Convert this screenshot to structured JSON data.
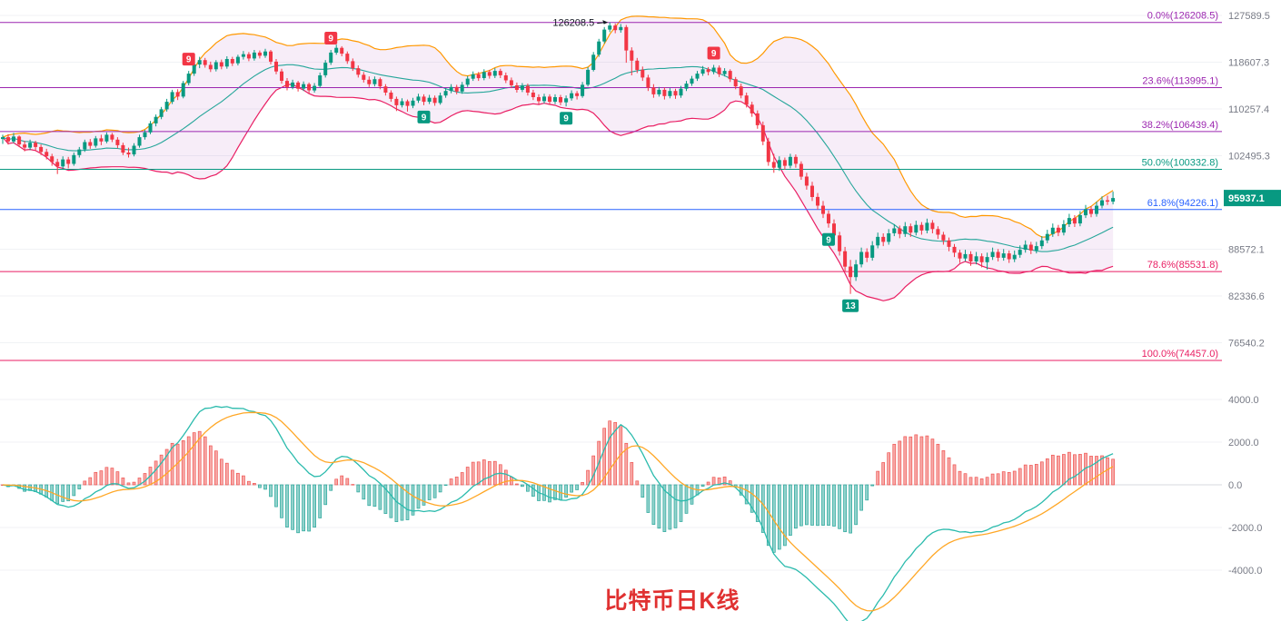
{
  "meta": {
    "title": "比特币日K线",
    "title_color": "#e03131"
  },
  "colors": {
    "up_candle": "#089981",
    "down_candle": "#f23645",
    "boll_upper": "#ff9800",
    "boll_lower": "#e91e63",
    "boll_mid": "#26a69a",
    "band_fill": "rgba(186,104,200,0.12)",
    "macd_pos": "#ef5350",
    "macd_neg": "#26a69a",
    "dif_line": "#2bbbad",
    "dea_line": "#ffa726",
    "axis_text": "#787b86",
    "grid": "#f0f2f5",
    "current_badge": "#089981",
    "annotation_text": "#131722"
  },
  "price_axis": {
    "scale": "log",
    "labels": [
      {
        "text": "127589.5",
        "value": 127589.5
      },
      {
        "text": "118607.3",
        "value": 118607.3
      },
      {
        "text": "110257.4",
        "value": 110257.4
      },
      {
        "text": "102495.3",
        "value": 102495.3
      },
      {
        "text": "88572.1",
        "value": 88572.1
      },
      {
        "text": "82336.6",
        "value": 82336.6
      },
      {
        "text": "76540.2",
        "value": 76540.2
      }
    ],
    "current_price": {
      "text": "95937.1",
      "value": 95937.1
    }
  },
  "macd_axis": {
    "labels": [
      {
        "text": "4000.0",
        "value": 4000
      },
      {
        "text": "2000.0",
        "value": 2000
      },
      {
        "text": "0.0",
        "value": 0
      },
      {
        "text": "-2000.0",
        "value": -2000
      },
      {
        "text": "-4000.0",
        "value": -4000
      }
    ]
  },
  "fib_levels": [
    {
      "label": "0.0%(126208.5)",
      "price": 126208.5,
      "color": "#9c27b0"
    },
    {
      "label": "23.6%(113995.1)",
      "price": 113995.1,
      "color": "#9c27b0"
    },
    {
      "label": "38.2%(106439.4)",
      "price": 106439.4,
      "color": "#9c27b0"
    },
    {
      "label": "50.0%(100332.8)",
      "price": 100332.8,
      "color": "#089981"
    },
    {
      "label": "61.8%(94226.1)",
      "price": 94226.1,
      "color": "#2962ff"
    },
    {
      "label": "78.6%(85531.8)",
      "price": 85531.8,
      "color": "#e91e63"
    },
    {
      "label": "100.0%(74457.0)",
      "price": 74457.0,
      "color": "#e91e63"
    }
  ],
  "annotations": [
    {
      "text": "126208.5",
      "candle_index": 111
    }
  ],
  "td_badges": [
    {
      "label": "9",
      "index": 34,
      "side": "above",
      "color": "#f23645"
    },
    {
      "label": "9",
      "index": 60,
      "side": "above",
      "color": "#f23645"
    },
    {
      "label": "9",
      "index": 77,
      "side": "below",
      "color": "#089981"
    },
    {
      "label": "9",
      "index": 103,
      "side": "below",
      "color": "#089981"
    },
    {
      "label": "9",
      "index": 130,
      "side": "above",
      "color": "#f23645"
    },
    {
      "label": "9",
      "index": 151,
      "side": "below",
      "color": "#089981"
    },
    {
      "label": "13",
      "index": 155,
      "side": "below",
      "color": "#089981"
    }
  ],
  "chart_data": {
    "type": "candlestick",
    "title": "比特币日K线",
    "y_scale": "log",
    "price_range_visible": [
      74457.0,
      127589.5
    ],
    "x_axis": {
      "labels_visible": false,
      "unit": "daily candles"
    },
    "indicator_overlays": {
      "bollinger_band": {
        "period": 20,
        "stddev_mult": 2
      },
      "fibonacci_retracement": {
        "high": 126208.5,
        "low": 74457.0
      }
    },
    "sub_chart": {
      "type": "macd",
      "fast": 12,
      "slow": 26,
      "signal": 9,
      "ylim": [
        -4000,
        4000
      ],
      "positive_color": "red",
      "negative_color": "green"
    },
    "candles_ohlc": [
      [
        105200,
        105900,
        104400,
        105500
      ],
      [
        105500,
        106000,
        104300,
        104800
      ],
      [
        104800,
        106200,
        104500,
        105600
      ],
      [
        105600,
        105800,
        103900,
        104300
      ],
      [
        104300,
        104900,
        103200,
        103800
      ],
      [
        103800,
        105100,
        103400,
        104600
      ],
      [
        104600,
        104900,
        103300,
        103900
      ],
      [
        103900,
        104300,
        102600,
        103100
      ],
      [
        103100,
        103600,
        101900,
        102400
      ],
      [
        102400,
        102800,
        100900,
        101500
      ],
      [
        101500,
        102000,
        99600,
        100800
      ],
      [
        100800,
        102400,
        100300,
        101900
      ],
      [
        101900,
        102300,
        100500,
        101200
      ],
      [
        101200,
        103000,
        100900,
        102600
      ],
      [
        102600,
        103900,
        102200,
        103500
      ],
      [
        103500,
        105100,
        103100,
        104700
      ],
      [
        104700,
        105200,
        103600,
        104100
      ],
      [
        104100,
        105700,
        103800,
        105300
      ],
      [
        105300,
        105900,
        104200,
        104800
      ],
      [
        104800,
        106300,
        104500,
        105900
      ],
      [
        105900,
        106200,
        104700,
        105100
      ],
      [
        105100,
        105500,
        103700,
        104200
      ],
      [
        104200,
        104600,
        102600,
        103000
      ],
      [
        103000,
        103800,
        102200,
        102700
      ],
      [
        102700,
        104500,
        102400,
        104100
      ],
      [
        104100,
        105900,
        103800,
        105500
      ],
      [
        105500,
        106700,
        105100,
        106300
      ],
      [
        106300,
        108200,
        106000,
        107800
      ],
      [
        107800,
        109300,
        107300,
        108900
      ],
      [
        108900,
        110600,
        108500,
        110200
      ],
      [
        110200,
        112000,
        109800,
        111500
      ],
      [
        111500,
        113600,
        111100,
        113200
      ],
      [
        113200,
        113700,
        111800,
        112400
      ],
      [
        112400,
        115200,
        112100,
        114800
      ],
      [
        114800,
        117000,
        114400,
        116500
      ],
      [
        116500,
        118700,
        116100,
        118200
      ],
      [
        118200,
        119600,
        117500,
        119000
      ],
      [
        119000,
        119400,
        117600,
        118100
      ],
      [
        118100,
        118700,
        116800,
        117300
      ],
      [
        117300,
        119000,
        116900,
        118600
      ],
      [
        118600,
        119100,
        117300,
        117800
      ],
      [
        117800,
        119700,
        117400,
        119200
      ],
      [
        119200,
        119600,
        117900,
        118400
      ],
      [
        118400,
        120000,
        118000,
        119600
      ],
      [
        119600,
        120700,
        119100,
        120100
      ],
      [
        120100,
        120500,
        118800,
        119300
      ],
      [
        119300,
        120900,
        118900,
        120400
      ],
      [
        120400,
        120800,
        119300,
        119800
      ],
      [
        119800,
        121100,
        119400,
        120600
      ],
      [
        120600,
        120900,
        118200,
        118700
      ],
      [
        118700,
        119200,
        116400,
        116900
      ],
      [
        116900,
        117400,
        114700,
        115200
      ],
      [
        115200,
        115700,
        113500,
        114100
      ],
      [
        114100,
        115400,
        113700,
        114900
      ],
      [
        114900,
        115200,
        113300,
        113800
      ],
      [
        113800,
        115100,
        113400,
        114600
      ],
      [
        114600,
        114900,
        113000,
        113500
      ],
      [
        113500,
        114800,
        113100,
        114300
      ],
      [
        114300,
        116700,
        114000,
        116200
      ],
      [
        116200,
        119000,
        115800,
        118500
      ],
      [
        118500,
        120900,
        118100,
        120400
      ],
      [
        120400,
        121900,
        120000,
        121300
      ],
      [
        121300,
        121600,
        119700,
        120200
      ],
      [
        120200,
        120600,
        118300,
        118800
      ],
      [
        118800,
        119300,
        117000,
        117500
      ],
      [
        117500,
        118000,
        115800,
        116300
      ],
      [
        116300,
        116800,
        114900,
        115400
      ],
      [
        115400,
        116000,
        114100,
        114600
      ],
      [
        114600,
        116000,
        114200,
        115500
      ],
      [
        115500,
        115800,
        113700,
        114200
      ],
      [
        114200,
        114600,
        112600,
        113100
      ],
      [
        113100,
        113500,
        111500,
        112000
      ],
      [
        112000,
        112400,
        109900,
        110900
      ],
      [
        110900,
        112100,
        110500,
        111600
      ],
      [
        111600,
        111900,
        109800,
        110800
      ],
      [
        110800,
        112200,
        110400,
        111700
      ],
      [
        111700,
        112900,
        111300,
        112400
      ],
      [
        112400,
        112800,
        110900,
        111500
      ],
      [
        111500,
        112700,
        111100,
        112200
      ],
      [
        112200,
        112600,
        110800,
        111300
      ],
      [
        111300,
        113100,
        111000,
        112600
      ],
      [
        112600,
        113900,
        112200,
        113400
      ],
      [
        113400,
        114600,
        113000,
        114100
      ],
      [
        114100,
        114500,
        112800,
        113300
      ],
      [
        113300,
        115000,
        112900,
        114500
      ],
      [
        114500,
        116100,
        114100,
        115600
      ],
      [
        115600,
        116900,
        115200,
        116400
      ],
      [
        116400,
        116800,
        115200,
        115700
      ],
      [
        115700,
        117300,
        115300,
        116800
      ],
      [
        116800,
        117200,
        115600,
        116100
      ],
      [
        116100,
        117500,
        115700,
        117000
      ],
      [
        117000,
        117400,
        115700,
        116200
      ],
      [
        116200,
        116700,
        114800,
        115300
      ],
      [
        115300,
        115800,
        113900,
        114400
      ],
      [
        114400,
        114900,
        113100,
        113600
      ],
      [
        113600,
        114800,
        113200,
        114300
      ],
      [
        114300,
        114700,
        112600,
        113100
      ],
      [
        113100,
        113600,
        111800,
        112300
      ],
      [
        112300,
        112800,
        111100,
        111600
      ],
      [
        111600,
        112900,
        111200,
        112400
      ],
      [
        112400,
        112800,
        111000,
        111500
      ],
      [
        111500,
        112800,
        111100,
        112300
      ],
      [
        112300,
        112700,
        110900,
        111400
      ],
      [
        111400,
        112600,
        110700,
        112100
      ],
      [
        112100,
        113500,
        111700,
        113000
      ],
      [
        113000,
        113400,
        111900,
        112500
      ],
      [
        112500,
        115000,
        112200,
        114500
      ],
      [
        114500,
        117700,
        114200,
        117200
      ],
      [
        117200,
        120500,
        116900,
        120000
      ],
      [
        120000,
        123000,
        119600,
        122500
      ],
      [
        122500,
        125300,
        122100,
        124800
      ],
      [
        124800,
        126208.5,
        124300,
        125600
      ],
      [
        125600,
        126000,
        124100,
        124700
      ],
      [
        124700,
        125900,
        124200,
        125300
      ],
      [
        125300,
        125700,
        118500,
        120800
      ],
      [
        120800,
        121400,
        116200,
        118900
      ],
      [
        118900,
        119400,
        116600,
        117200
      ],
      [
        117200,
        117800,
        115200,
        115800
      ],
      [
        115800,
        116300,
        113400,
        114000
      ],
      [
        114000,
        114600,
        112200,
        112800
      ],
      [
        112800,
        114100,
        112400,
        113600
      ],
      [
        113600,
        114000,
        111900,
        112500
      ],
      [
        112500,
        113900,
        112100,
        113400
      ],
      [
        113400,
        113800,
        112000,
        112600
      ],
      [
        112600,
        114300,
        112200,
        113800
      ],
      [
        113800,
        115200,
        113400,
        114700
      ],
      [
        114700,
        116100,
        114300,
        115600
      ],
      [
        115600,
        117000,
        115200,
        116500
      ],
      [
        116500,
        117900,
        116100,
        117300
      ],
      [
        117300,
        117700,
        116200,
        116800
      ],
      [
        116800,
        118100,
        116400,
        117600
      ],
      [
        117600,
        118000,
        115900,
        116400
      ],
      [
        116400,
        117500,
        116000,
        117000
      ],
      [
        117000,
        117300,
        115000,
        115500
      ],
      [
        115500,
        115900,
        113700,
        114200
      ],
      [
        114200,
        114700,
        112100,
        112600
      ],
      [
        112600,
        113100,
        110500,
        111000
      ],
      [
        111000,
        111500,
        108900,
        109500
      ],
      [
        109500,
        110000,
        106900,
        107500
      ],
      [
        107500,
        108100,
        104200,
        104800
      ],
      [
        104800,
        105400,
        100900,
        101500
      ],
      [
        101500,
        102800,
        99800,
        100600
      ],
      [
        100600,
        102400,
        100100,
        101800
      ],
      [
        101800,
        102200,
        100300,
        100900
      ],
      [
        100900,
        102800,
        100500,
        102300
      ],
      [
        102300,
        102700,
        100600,
        101200
      ],
      [
        101200,
        101600,
        98700,
        99200
      ],
      [
        99200,
        99800,
        97200,
        97800
      ],
      [
        97800,
        98400,
        95500,
        96100
      ],
      [
        96100,
        96700,
        94200,
        94800
      ],
      [
        94800,
        95500,
        93000,
        93600
      ],
      [
        93600,
        94100,
        91600,
        92200
      ],
      [
        92200,
        92800,
        89900,
        90500
      ],
      [
        90500,
        91000,
        87700,
        88300
      ],
      [
        88300,
        88900,
        85500,
        86200
      ],
      [
        86200,
        87100,
        82600,
        84800
      ],
      [
        84800,
        87100,
        84300,
        86500
      ],
      [
        86500,
        88800,
        86100,
        88200
      ],
      [
        88200,
        88700,
        86800,
        87400
      ],
      [
        87400,
        89700,
        87000,
        89100
      ],
      [
        89100,
        90900,
        88700,
        90300
      ],
      [
        90300,
        90800,
        89000,
        89600
      ],
      [
        89600,
        91400,
        89200,
        90800
      ],
      [
        90800,
        92100,
        90400,
        91500
      ],
      [
        91500,
        91900,
        90100,
        90700
      ],
      [
        90700,
        92400,
        90300,
        91800
      ],
      [
        91800,
        92200,
        90300,
        90900
      ],
      [
        90900,
        92600,
        90500,
        92000
      ],
      [
        92000,
        92400,
        90600,
        91200
      ],
      [
        91200,
        92900,
        90800,
        92300
      ],
      [
        92300,
        92700,
        90800,
        91400
      ],
      [
        91400,
        91800,
        90000,
        90600
      ],
      [
        90600,
        91000,
        89200,
        89800
      ],
      [
        89800,
        90200,
        88300,
        88900
      ],
      [
        88900,
        89300,
        87500,
        88100
      ],
      [
        88100,
        88500,
        86700,
        87300
      ],
      [
        87300,
        88500,
        86900,
        87900
      ],
      [
        87900,
        88300,
        86300,
        86900
      ],
      [
        86900,
        88200,
        86500,
        87600
      ],
      [
        87600,
        88000,
        86100,
        86800
      ],
      [
        86800,
        88100,
        85800,
        87500
      ],
      [
        87500,
        88800,
        87100,
        88200
      ],
      [
        88200,
        88600,
        86900,
        87400
      ],
      [
        87400,
        88600,
        87000,
        88000
      ],
      [
        88000,
        88400,
        86700,
        87200
      ],
      [
        87200,
        88400,
        86800,
        87800
      ],
      [
        87800,
        89100,
        87400,
        88500
      ],
      [
        88500,
        89800,
        88100,
        89200
      ],
      [
        89200,
        89600,
        87900,
        88400
      ],
      [
        88400,
        89600,
        88000,
        89000
      ],
      [
        89000,
        90400,
        88600,
        89800
      ],
      [
        89800,
        91300,
        89400,
        90700
      ],
      [
        90700,
        92200,
        90300,
        91600
      ],
      [
        91600,
        92000,
        90400,
        90900
      ],
      [
        90900,
        92700,
        90500,
        92100
      ],
      [
        92100,
        93600,
        91700,
        93000
      ],
      [
        93000,
        93400,
        91700,
        92200
      ],
      [
        92200,
        94000,
        91800,
        93400
      ],
      [
        93400,
        94900,
        93000,
        94300
      ],
      [
        94300,
        94700,
        93100,
        93600
      ],
      [
        93600,
        95400,
        93200,
        94800
      ],
      [
        94800,
        96200,
        94400,
        95600
      ],
      [
        95600,
        96300,
        94900,
        95400
      ],
      [
        95400,
        96900,
        95000,
        95937.1
      ]
    ]
  }
}
